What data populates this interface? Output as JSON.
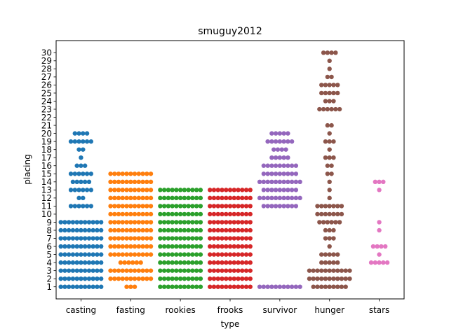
{
  "chart_data": {
    "type": "scatter",
    "title": "smuguy2012",
    "xlabel": "type",
    "ylabel": "placing",
    "categories": [
      "casting",
      "fasting",
      "rookies",
      "frooks",
      "survivor",
      "hunger",
      "stars"
    ],
    "yticks": [
      1,
      2,
      3,
      4,
      5,
      6,
      7,
      8,
      9,
      10,
      11,
      12,
      13,
      14,
      15,
      16,
      17,
      18,
      19,
      20,
      21,
      22,
      23,
      24,
      25,
      26,
      27,
      28,
      29,
      30
    ],
    "ylim": [
      -0.5,
      31.5
    ],
    "grid": false,
    "colors": [
      "#1f77b4",
      "#ff7f0e",
      "#2ca02c",
      "#d62728",
      "#9467bd",
      "#8c564b",
      "#e377c2"
    ],
    "series": [
      {
        "category": "casting",
        "counts": {
          "1": 11,
          "2": 11,
          "3": 11,
          "4": 11,
          "5": 11,
          "6": 11,
          "7": 11,
          "8": 11,
          "9": 11,
          "11": 6,
          "12": 2,
          "13": 6,
          "14": 5,
          "15": 6,
          "16": 3,
          "17": 1,
          "18": 2,
          "19": 6,
          "20": 4
        }
      },
      {
        "category": "fasting",
        "counts": {
          "1": 3,
          "2": 11,
          "3": 11,
          "4": 6,
          "5": 11,
          "6": 11,
          "7": 11,
          "8": 11,
          "9": 11,
          "10": 11,
          "11": 11,
          "12": 11,
          "13": 11,
          "14": 11,
          "15": 11
        }
      },
      {
        "category": "rookies",
        "counts": {
          "1": 11,
          "2": 11,
          "3": 11,
          "4": 11,
          "5": 11,
          "6": 11,
          "7": 11,
          "8": 11,
          "9": 11,
          "10": 11,
          "11": 11,
          "12": 11,
          "13": 11
        }
      },
      {
        "category": "frooks",
        "counts": {
          "1": 11,
          "2": 11,
          "3": 11,
          "4": 11,
          "5": 11,
          "6": 11,
          "7": 11,
          "8": 11,
          "9": 11,
          "10": 11,
          "11": 11,
          "12": 11,
          "13": 11
        }
      },
      {
        "category": "survivor",
        "counts": {
          "1": 11,
          "11": 9,
          "12": 11,
          "13": 9,
          "14": 11,
          "15": 9,
          "16": 9,
          "17": 5,
          "18": 4,
          "19": 7,
          "20": 5
        }
      },
      {
        "category": "hunger",
        "counts": {
          "1": 9,
          "2": 11,
          "3": 11,
          "4": 5,
          "5": 5,
          "6": 1,
          "7": 3,
          "8": 3,
          "9": 6,
          "10": 7,
          "11": 7,
          "12": 1,
          "13": 1,
          "14": 1,
          "15": 2,
          "16": 2,
          "17": 3,
          "18": 1,
          "19": 3,
          "20": 1,
          "21": 2,
          "23": 6,
          "24": 3,
          "25": 5,
          "26": 5,
          "27": 2,
          "28": 1,
          "29": 1,
          "30": 4
        }
      },
      {
        "category": "stars",
        "counts": {
          "4": 5,
          "5": 1,
          "6": 4,
          "8": 1,
          "9": 1,
          "13": 1,
          "14": 3
        }
      }
    ]
  }
}
